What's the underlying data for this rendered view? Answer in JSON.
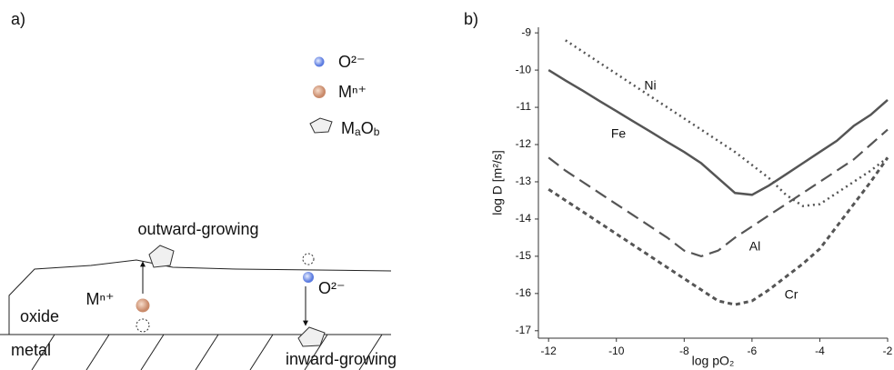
{
  "panel_a": {
    "label": "a)",
    "legend": [
      {
        "label": "O²⁻"
      },
      {
        "label": "Mⁿ⁺"
      },
      {
        "parts": [
          "M",
          "a",
          "O",
          "b"
        ]
      }
    ],
    "outward": "outward-growing",
    "inward": "inward-growing",
    "oxide": "oxide",
    "metal": "metal",
    "cation": "Mⁿ⁺",
    "anion": "O²⁻"
  },
  "chart_data": {
    "type": "line",
    "panel_label": "b)",
    "xlabel": "log pO₂",
    "ylabel": "log D [m²/s]",
    "x": [
      -12,
      -11.5,
      -11,
      -10.5,
      -10,
      -9.5,
      -9,
      -8.5,
      -8,
      -7.5,
      -7,
      -6.5,
      -6,
      -5.5,
      -5,
      -4.5,
      -4,
      -3.5,
      -3,
      -2.5,
      -2
    ],
    "xlim": [
      -12.3,
      -2
    ],
    "xticks": [
      -12,
      -10,
      -8,
      -6,
      -4,
      -2
    ],
    "ylim": [
      -17.2,
      -8.85
    ],
    "yticks": [
      -17,
      -16,
      -15,
      -14,
      -13,
      -12,
      -11,
      -10,
      -9
    ],
    "series": [
      {
        "name": "Fe",
        "color": "#555555",
        "dash": "solid",
        "values": [
          -10.0,
          -10.28,
          -10.55,
          -10.83,
          -11.1,
          -11.38,
          -11.65,
          -11.93,
          -12.2,
          -12.5,
          -12.9,
          -13.3,
          -13.35,
          -13.1,
          -12.8,
          -12.5,
          -12.2,
          -11.9,
          -11.5,
          -11.2,
          -10.8
        ]
      },
      {
        "name": "Ni",
        "color": "#555555",
        "dash": "dotted",
        "values": [
          null,
          -9.2,
          -9.5,
          -9.8,
          -10.1,
          -10.4,
          -10.7,
          -11.0,
          -11.3,
          -11.6,
          -11.9,
          -12.2,
          -12.55,
          -12.9,
          -13.35,
          -13.65,
          -13.6,
          -13.3,
          -13.0,
          -12.7,
          -12.35
        ]
      },
      {
        "name": "Al",
        "color": "#555555",
        "dash": "dashed",
        "values": [
          -12.35,
          -12.7,
          -13.0,
          -13.3,
          -13.6,
          -13.9,
          -14.2,
          -14.5,
          -14.85,
          -15.0,
          -14.85,
          -14.5,
          -14.2,
          -13.9,
          -13.6,
          -13.3,
          -13.0,
          -12.7,
          -12.4,
          -12.0,
          -11.6
        ]
      },
      {
        "name": "Cr",
        "color": "#555555",
        "dash": "short-dashed",
        "values": [
          -13.2,
          -13.5,
          -13.8,
          -14.1,
          -14.4,
          -14.7,
          -15.0,
          -15.3,
          -15.6,
          -15.9,
          -16.2,
          -16.3,
          -16.2,
          -15.9,
          -15.55,
          -15.2,
          -14.8,
          -14.2,
          -13.6,
          -13.0,
          -12.35
        ]
      }
    ]
  }
}
